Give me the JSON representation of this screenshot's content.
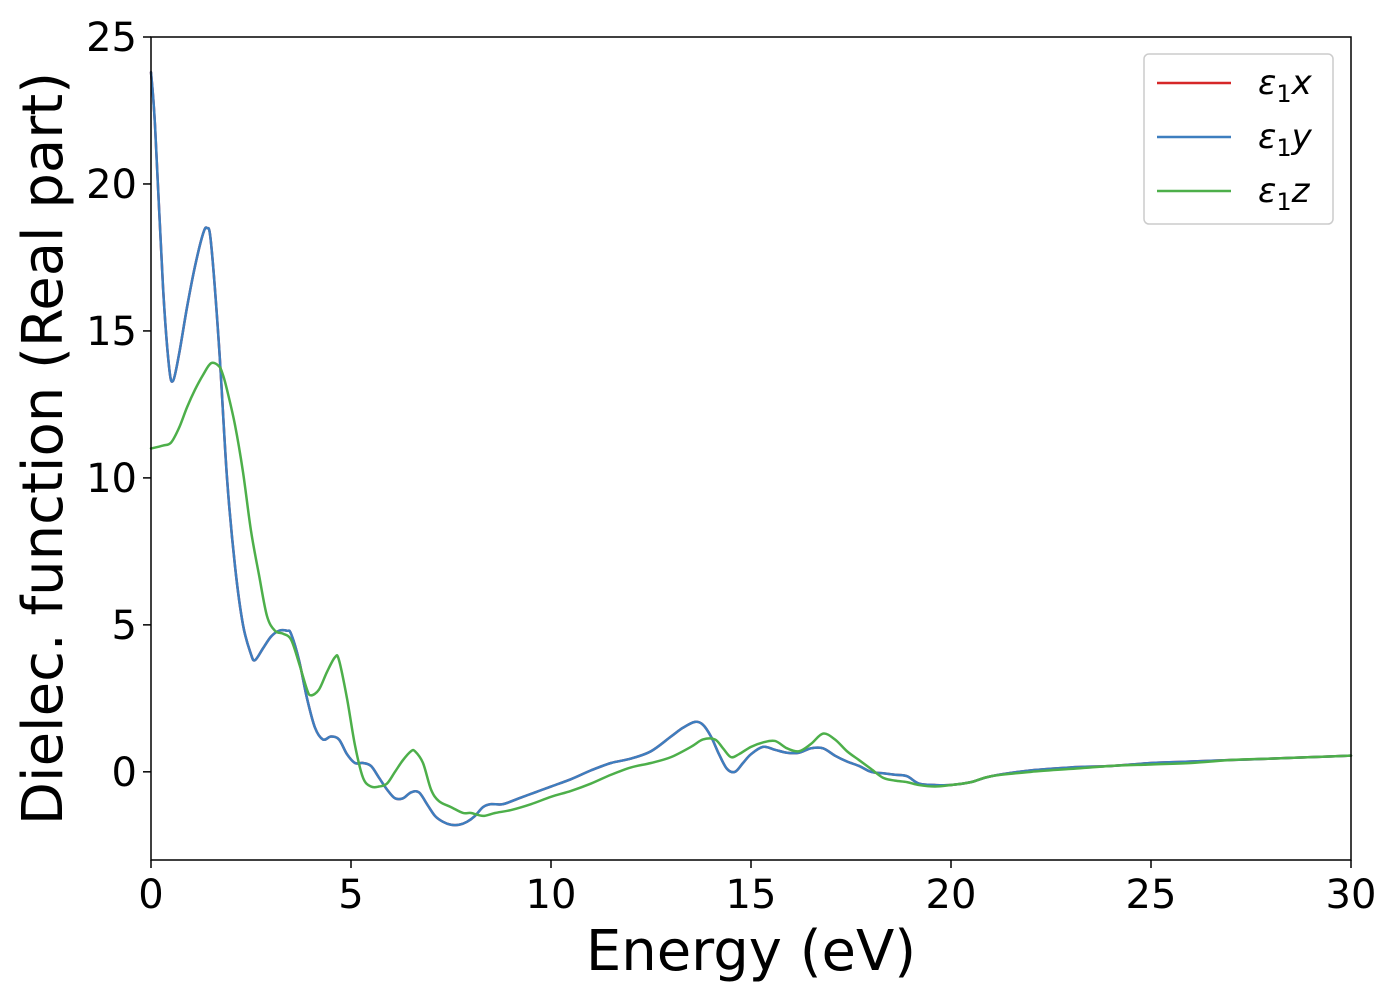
{
  "chart_data": {
    "type": "line",
    "title": "",
    "xlabel": "Energy (eV)",
    "ylabel": "Dielec. function (Real part)",
    "xlim": [
      0,
      30
    ],
    "ylim": [
      -3,
      25
    ],
    "xticks": [
      0,
      5,
      10,
      15,
      20,
      25,
      30
    ],
    "yticks": [
      0,
      5,
      10,
      15,
      20,
      25
    ],
    "grid": false,
    "legend_position": "top-right",
    "series": [
      {
        "name": "ε₁x",
        "legend_main": "ε",
        "legend_sub": "1",
        "legend_var": "x",
        "color": "#d62728",
        "x": [
          0,
          0.1,
          0.3,
          0.45,
          0.55,
          0.7,
          0.9,
          1.1,
          1.3,
          1.4,
          1.5,
          1.7,
          1.9,
          2.1,
          2.3,
          2.5,
          2.6,
          2.8,
          3.0,
          3.2,
          3.4,
          3.5,
          3.7,
          3.9,
          4.1,
          4.3,
          4.5,
          4.7,
          4.9,
          5.1,
          5.3,
          5.5,
          5.7,
          5.9,
          6.1,
          6.3,
          6.5,
          6.7,
          6.9,
          7.1,
          7.3,
          7.5,
          7.7,
          7.9,
          8.1,
          8.3,
          8.5,
          8.8,
          9.2,
          9.6,
          10.0,
          10.5,
          11.0,
          11.5,
          12.0,
          12.5,
          13.0,
          13.3,
          13.6,
          13.8,
          14.0,
          14.2,
          14.4,
          14.6,
          14.8,
          15.0,
          15.3,
          15.6,
          15.9,
          16.2,
          16.5,
          16.8,
          17.1,
          17.4,
          17.7,
          18.0,
          18.3,
          18.6,
          18.9,
          19.2,
          19.6,
          20.0,
          20.5,
          21.0,
          22.0,
          23.0,
          24.0,
          25.0,
          26.0,
          27.0,
          28.0,
          29.0,
          30.0
        ],
        "values": [
          23.8,
          22.0,
          16.5,
          13.8,
          13.3,
          14.2,
          15.8,
          17.2,
          18.3,
          18.5,
          18.0,
          14.5,
          10.0,
          7.0,
          5.0,
          4.0,
          3.8,
          4.2,
          4.6,
          4.8,
          4.8,
          4.7,
          3.8,
          2.5,
          1.5,
          1.1,
          1.2,
          1.1,
          0.6,
          0.3,
          0.3,
          0.2,
          -0.2,
          -0.6,
          -0.9,
          -0.9,
          -0.7,
          -0.7,
          -1.1,
          -1.5,
          -1.7,
          -1.8,
          -1.8,
          -1.7,
          -1.5,
          -1.2,
          -1.1,
          -1.1,
          -0.9,
          -0.7,
          -0.5,
          -0.25,
          0.05,
          0.3,
          0.45,
          0.7,
          1.2,
          1.5,
          1.7,
          1.6,
          1.2,
          0.6,
          0.1,
          0.0,
          0.3,
          0.6,
          0.85,
          0.75,
          0.65,
          0.65,
          0.8,
          0.8,
          0.55,
          0.35,
          0.2,
          0.0,
          -0.05,
          -0.1,
          -0.15,
          -0.4,
          -0.45,
          -0.45,
          -0.35,
          -0.15,
          0.05,
          0.15,
          0.2,
          0.3,
          0.35,
          0.4,
          0.45,
          0.5,
          0.55
        ]
      },
      {
        "name": "ε₁y",
        "legend_main": "ε",
        "legend_sub": "1",
        "legend_var": "y",
        "color": "#3d7ebf",
        "x": [
          0,
          0.1,
          0.3,
          0.45,
          0.55,
          0.7,
          0.9,
          1.1,
          1.3,
          1.4,
          1.5,
          1.7,
          1.9,
          2.1,
          2.3,
          2.5,
          2.6,
          2.8,
          3.0,
          3.2,
          3.4,
          3.5,
          3.7,
          3.9,
          4.1,
          4.3,
          4.5,
          4.7,
          4.9,
          5.1,
          5.3,
          5.5,
          5.7,
          5.9,
          6.1,
          6.3,
          6.5,
          6.7,
          6.9,
          7.1,
          7.3,
          7.5,
          7.7,
          7.9,
          8.1,
          8.3,
          8.5,
          8.8,
          9.2,
          9.6,
          10.0,
          10.5,
          11.0,
          11.5,
          12.0,
          12.5,
          13.0,
          13.3,
          13.6,
          13.8,
          14.0,
          14.2,
          14.4,
          14.6,
          14.8,
          15.0,
          15.3,
          15.6,
          15.9,
          16.2,
          16.5,
          16.8,
          17.1,
          17.4,
          17.7,
          18.0,
          18.3,
          18.6,
          18.9,
          19.2,
          19.6,
          20.0,
          20.5,
          21.0,
          22.0,
          23.0,
          24.0,
          25.0,
          26.0,
          27.0,
          28.0,
          29.0,
          30.0
        ],
        "values": [
          23.8,
          22.0,
          16.5,
          13.8,
          13.3,
          14.2,
          15.8,
          17.2,
          18.3,
          18.5,
          18.0,
          14.5,
          10.0,
          7.0,
          5.0,
          4.0,
          3.8,
          4.2,
          4.6,
          4.8,
          4.8,
          4.7,
          3.8,
          2.5,
          1.5,
          1.1,
          1.2,
          1.1,
          0.6,
          0.3,
          0.3,
          0.2,
          -0.2,
          -0.6,
          -0.9,
          -0.9,
          -0.7,
          -0.7,
          -1.1,
          -1.5,
          -1.7,
          -1.8,
          -1.8,
          -1.7,
          -1.5,
          -1.2,
          -1.1,
          -1.1,
          -0.9,
          -0.7,
          -0.5,
          -0.25,
          0.05,
          0.3,
          0.45,
          0.7,
          1.2,
          1.5,
          1.7,
          1.6,
          1.2,
          0.6,
          0.1,
          0.0,
          0.3,
          0.6,
          0.85,
          0.75,
          0.65,
          0.65,
          0.8,
          0.8,
          0.55,
          0.35,
          0.2,
          0.0,
          -0.05,
          -0.1,
          -0.15,
          -0.4,
          -0.45,
          -0.45,
          -0.35,
          -0.15,
          0.05,
          0.15,
          0.2,
          0.3,
          0.35,
          0.4,
          0.45,
          0.5,
          0.55
        ]
      },
      {
        "name": "ε₁z",
        "legend_main": "ε",
        "legend_sub": "1",
        "legend_var": "z",
        "color": "#4daf4a",
        "x": [
          0,
          0.3,
          0.5,
          0.7,
          0.9,
          1.1,
          1.3,
          1.5,
          1.7,
          1.8,
          1.9,
          2.1,
          2.3,
          2.5,
          2.7,
          2.9,
          3.1,
          3.3,
          3.5,
          3.7,
          3.9,
          4.0,
          4.2,
          4.4,
          4.6,
          4.7,
          4.9,
          5.1,
          5.3,
          5.5,
          5.7,
          5.9,
          6.1,
          6.3,
          6.5,
          6.6,
          6.8,
          7.0,
          7.2,
          7.5,
          7.8,
          8.0,
          8.3,
          8.6,
          9.0,
          9.5,
          10.0,
          10.5,
          11.0,
          11.5,
          12.0,
          12.5,
          13.0,
          13.5,
          13.8,
          14.1,
          14.3,
          14.5,
          14.7,
          15.0,
          15.3,
          15.6,
          15.9,
          16.2,
          16.5,
          16.8,
          17.1,
          17.4,
          17.7,
          18.0,
          18.3,
          18.6,
          18.9,
          19.2,
          19.6,
          20.0,
          20.5,
          21.0,
          22.0,
          23.0,
          24.0,
          25.0,
          26.0,
          27.0,
          28.0,
          29.0,
          30.0
        ],
        "values": [
          11.0,
          11.1,
          11.2,
          11.7,
          12.4,
          13.0,
          13.5,
          13.9,
          13.8,
          13.5,
          13.0,
          11.8,
          10.2,
          8.2,
          6.7,
          5.3,
          4.8,
          4.7,
          4.5,
          3.7,
          2.8,
          2.6,
          2.8,
          3.4,
          3.9,
          3.8,
          2.5,
          0.9,
          -0.2,
          -0.5,
          -0.5,
          -0.4,
          0.0,
          0.4,
          0.7,
          0.7,
          0.3,
          -0.6,
          -1.0,
          -1.2,
          -1.4,
          -1.4,
          -1.5,
          -1.4,
          -1.3,
          -1.1,
          -0.85,
          -0.65,
          -0.4,
          -0.1,
          0.15,
          0.3,
          0.5,
          0.85,
          1.1,
          1.1,
          0.8,
          0.5,
          0.6,
          0.85,
          1.0,
          1.05,
          0.8,
          0.7,
          0.95,
          1.3,
          1.1,
          0.7,
          0.4,
          0.1,
          -0.2,
          -0.3,
          -0.35,
          -0.45,
          -0.5,
          -0.45,
          -0.35,
          -0.15,
          0.0,
          0.1,
          0.2,
          0.25,
          0.3,
          0.4,
          0.45,
          0.5,
          0.55
        ]
      }
    ]
  }
}
